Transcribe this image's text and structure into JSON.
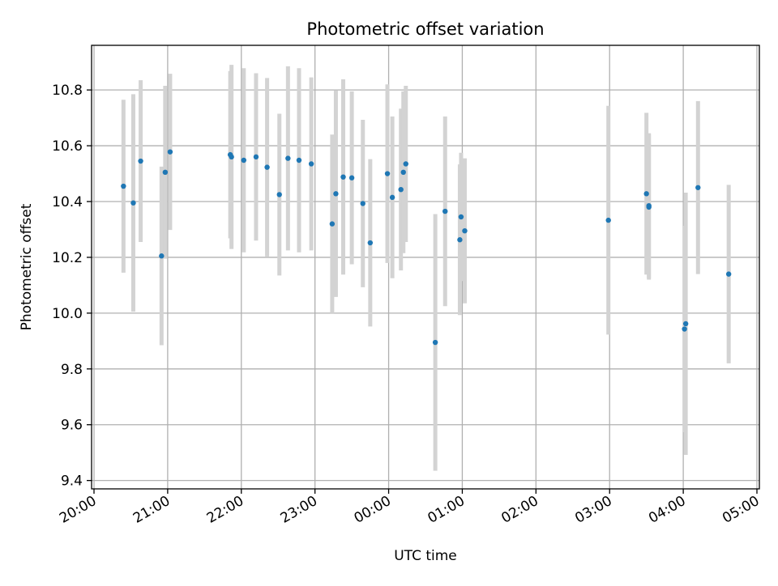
{
  "chart_data": {
    "type": "scatter",
    "title": "Photometric offset variation",
    "xlabel": "UTC time",
    "ylabel": "Photometric offset",
    "x_axis_kind": "time",
    "xlim": [
      "20:00",
      "05:00"
    ],
    "x_ticks": [
      "20:00",
      "21:00",
      "22:00",
      "23:00",
      "00:00",
      "01:00",
      "02:00",
      "03:00",
      "04:00",
      "05:00"
    ],
    "ylim": [
      9.37,
      10.96
    ],
    "y_ticks": [
      9.4,
      9.6,
      9.8,
      10.0,
      10.2,
      10.4,
      10.6,
      10.8
    ],
    "y_tick_labels": [
      "9.4",
      "9.6",
      "9.8",
      "10.0",
      "10.2",
      "10.4",
      "10.6",
      "10.8"
    ],
    "grid": true,
    "colors": {
      "point": "#1f77b4",
      "errorbar": "#d3d3d3",
      "grid": "#b0b0b0"
    },
    "points": [
      {
        "t": "20:24",
        "y": 10.455,
        "err": 0.31
      },
      {
        "t": "20:32",
        "y": 10.395,
        "err": 0.39
      },
      {
        "t": "20:38",
        "y": 10.545,
        "err": 0.29
      },
      {
        "t": "20:55",
        "y": 10.205,
        "err": 0.32
      },
      {
        "t": "20:58",
        "y": 10.505,
        "err": 0.31
      },
      {
        "t": "21:02",
        "y": 10.578,
        "err": 0.28
      },
      {
        "t": "21:51",
        "y": 10.568,
        "err": 0.3
      },
      {
        "t": "21:52",
        "y": 10.56,
        "err": 0.33
      },
      {
        "t": "22:02",
        "y": 10.548,
        "err": 0.33
      },
      {
        "t": "22:12",
        "y": 10.56,
        "err": 0.3
      },
      {
        "t": "22:21",
        "y": 10.523,
        "err": 0.32
      },
      {
        "t": "22:31",
        "y": 10.425,
        "err": 0.29
      },
      {
        "t": "22:38",
        "y": 10.555,
        "err": 0.33
      },
      {
        "t": "22:47",
        "y": 10.548,
        "err": 0.33
      },
      {
        "t": "22:57",
        "y": 10.535,
        "err": 0.31
      },
      {
        "t": "23:14",
        "y": 10.32,
        "err": 0.32
      },
      {
        "t": "23:17",
        "y": 10.428,
        "err": 0.37
      },
      {
        "t": "23:23",
        "y": 10.488,
        "err": 0.35
      },
      {
        "t": "23:30",
        "y": 10.485,
        "err": 0.31
      },
      {
        "t": "23:39",
        "y": 10.393,
        "err": 0.3
      },
      {
        "t": "23:45",
        "y": 10.252,
        "err": 0.3
      },
      {
        "t": "23:59",
        "y": 10.5,
        "err": 0.32
      },
      {
        "t": "00:03",
        "y": 10.415,
        "err": 0.29
      },
      {
        "t": "00:10",
        "y": 10.443,
        "err": 0.29
      },
      {
        "t": "00:12",
        "y": 10.505,
        "err": 0.29
      },
      {
        "t": "00:14",
        "y": 10.535,
        "err": 0.28
      },
      {
        "t": "00:38",
        "y": 9.895,
        "err": 0.46
      },
      {
        "t": "00:46",
        "y": 10.365,
        "err": 0.34
      },
      {
        "t": "00:58",
        "y": 10.263,
        "err": 0.27
      },
      {
        "t": "00:59",
        "y": 10.345,
        "err": 0.23
      },
      {
        "t": "01:02",
        "y": 10.295,
        "err": 0.26
      },
      {
        "t": "02:59",
        "y": 10.333,
        "err": 0.41
      },
      {
        "t": "03:30",
        "y": 10.428,
        "err": 0.29
      },
      {
        "t": "03:32",
        "y": 10.385,
        "err": 0.26
      },
      {
        "t": "03:32",
        "y": 10.38,
        "err": 0.26
      },
      {
        "t": "04:01",
        "y": 9.943,
        "err": 0.37
      },
      {
        "t": "04:02",
        "y": 9.962,
        "err": 0.47
      },
      {
        "t": "04:12",
        "y": 10.45,
        "err": 0.31
      },
      {
        "t": "04:37",
        "y": 10.14,
        "err": 0.32
      }
    ]
  }
}
